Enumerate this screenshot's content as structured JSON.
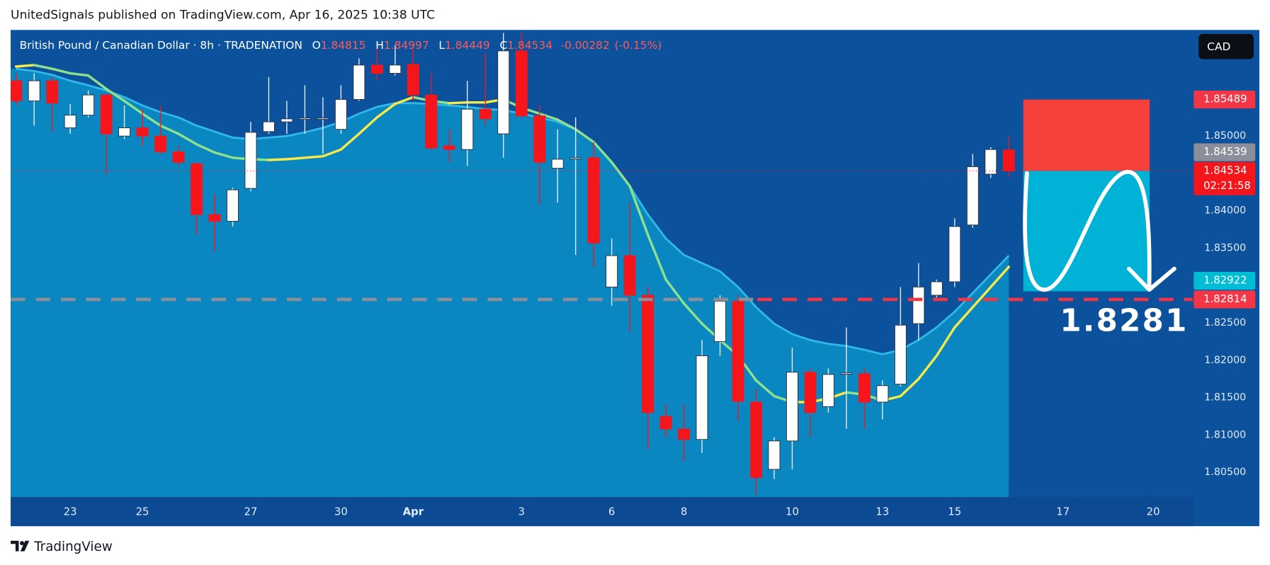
{
  "header": {
    "text": "UnitedSignals published on TradingView.com, Apr 16, 2025 10:38 UTC"
  },
  "footer": {
    "brand": "TradingView"
  },
  "chart_data": {
    "type": "candlestick",
    "symbol": "British Pound / Canadian Dollar · 8h · TRADENATION",
    "ohlc_legend": [
      {
        "key": "O",
        "value": 1.84815
      },
      {
        "key": "H",
        "value": 1.84997
      },
      {
        "key": "L",
        "value": 1.84449
      },
      {
        "key": "C",
        "value": 1.84534
      }
    ],
    "change": -0.00282,
    "change_pct": {
      "value": -0.15,
      "label": "(-0.15%)"
    },
    "currency": "CAD",
    "countdown": "02:21:58",
    "xlim": [
      -0.3,
      65.2
    ],
    "xticks": [
      {
        "value": 3,
        "label": "23"
      },
      {
        "value": 7,
        "label": "25"
      },
      {
        "value": 13,
        "label": "27"
      },
      {
        "value": 18,
        "label": "30"
      },
      {
        "value": 22,
        "label": "Apr"
      },
      {
        "value": 28,
        "label": "3"
      },
      {
        "value": 33,
        "label": "6"
      },
      {
        "value": 37,
        "label": "8"
      },
      {
        "value": 43,
        "label": "10"
      },
      {
        "value": 48,
        "label": "13"
      },
      {
        "value": 52,
        "label": "15"
      },
      {
        "value": 58,
        "label": "17"
      },
      {
        "value": 63,
        "label": "20"
      }
    ],
    "ylim": [
      1.8017,
      1.8642
    ],
    "yticks": [
      {
        "value": 1.805,
        "label": "1.80500"
      },
      {
        "value": 1.81,
        "label": "1.81000"
      },
      {
        "value": 1.815,
        "label": "1.81500"
      },
      {
        "value": 1.82,
        "label": "1.82000"
      },
      {
        "value": 1.825,
        "label": "1.82500"
      },
      {
        "value": 1.83,
        "label": "1.83000"
      },
      {
        "value": 1.835,
        "label": "1.83500"
      },
      {
        "value": 1.84,
        "label": "1.84000"
      },
      {
        "value": 1.85,
        "label": "1.85000"
      }
    ],
    "grid": false,
    "up_color": "#ffffff",
    "down_color": "#f5161c",
    "candles": {
      "open": [
        1.8574,
        1.8547,
        1.8574,
        1.8511,
        1.8528,
        1.8555,
        1.85,
        1.8511,
        1.85,
        1.8479,
        1.8463,
        1.8395,
        1.8386,
        1.843,
        1.8506,
        1.8519,
        1.8523,
        1.8523,
        1.8509,
        1.8549,
        1.8595,
        1.8584,
        1.8596,
        1.8555,
        1.8487,
        1.8482,
        1.8536,
        1.8503,
        1.8614,
        1.8527,
        1.8457,
        1.847,
        1.8471,
        1.8298,
        1.834,
        1.8287,
        1.8125,
        1.8108,
        1.8094,
        1.8225,
        1.8279,
        1.8144,
        1.8054,
        1.8092,
        1.8184,
        1.8138,
        1.8182,
        1.8182,
        1.8144,
        1.8168,
        1.8249,
        1.8287,
        1.8305,
        1.8381,
        1.8449,
        1.84815
      ],
      "high": [
        1.8584,
        1.8584,
        1.8579,
        1.8543,
        1.8561,
        1.8557,
        1.8541,
        1.8536,
        1.8541,
        1.8487,
        1.8465,
        1.8422,
        1.8431,
        1.8519,
        1.8579,
        1.8547,
        1.8568,
        1.8552,
        1.8568,
        1.8604,
        1.8622,
        1.8622,
        1.8617,
        1.8584,
        1.8509,
        1.8574,
        1.8611,
        1.8638,
        1.8638,
        1.8541,
        1.8509,
        1.8525,
        1.8492,
        1.8363,
        1.8411,
        1.8298,
        1.8141,
        1.8141,
        1.8227,
        1.8287,
        1.8287,
        1.8162,
        1.8097,
        1.8217,
        1.8189,
        1.8189,
        1.8244,
        1.8189,
        1.8173,
        1.8298,
        1.833,
        1.8308,
        1.839,
        1.8476,
        1.8485,
        1.84997
      ],
      "low": [
        1.8541,
        1.8514,
        1.8506,
        1.8503,
        1.8525,
        1.8449,
        1.8496,
        1.8487,
        1.8476,
        1.846,
        1.8368,
        1.8346,
        1.8379,
        1.8426,
        1.8503,
        1.8503,
        1.8503,
        1.8476,
        1.8503,
        1.8547,
        1.8574,
        1.8581,
        1.8547,
        1.8482,
        1.8465,
        1.846,
        1.8514,
        1.8471,
        1.8525,
        1.8408,
        1.8411,
        1.8341,
        1.8325,
        1.8273,
        1.8238,
        1.8081,
        1.8097,
        1.8065,
        1.8076,
        1.8206,
        1.8119,
        1.802,
        1.8041,
        1.8054,
        1.8097,
        1.813,
        1.8108,
        1.8108,
        1.8121,
        1.8165,
        1.8227,
        1.8284,
        1.8298,
        1.8377,
        1.8444,
        1.84449
      ],
      "close": [
        1.8547,
        1.8574,
        1.8544,
        1.8528,
        1.8555,
        1.8503,
        1.8511,
        1.85,
        1.8479,
        1.8465,
        1.8395,
        1.8386,
        1.8428,
        1.8505,
        1.8519,
        1.8523,
        1.8524,
        1.8524,
        1.8549,
        1.8595,
        1.8584,
        1.8595,
        1.8555,
        1.8484,
        1.8482,
        1.8536,
        1.8523,
        1.8614,
        1.8527,
        1.8465,
        1.8469,
        1.8471,
        1.8357,
        1.834,
        1.8287,
        1.813,
        1.8108,
        1.8094,
        1.8206,
        1.8279,
        1.8145,
        1.8043,
        1.8092,
        1.8184,
        1.813,
        1.8181,
        1.8183,
        1.8144,
        1.8166,
        1.8247,
        1.8298,
        1.8305,
        1.8379,
        1.8459,
        1.8482,
        1.84534
      ]
    },
    "fast_ma": {
      "up_color": "#f7ea48",
      "down_color": "#8fe08c",
      "values": [
        1.8593,
        1.8595,
        1.859,
        1.8584,
        1.8581,
        1.8563,
        1.8547,
        1.853,
        1.8514,
        1.8503,
        1.8489,
        1.8478,
        1.8471,
        1.8469,
        1.8468,
        1.8469,
        1.8471,
        1.8473,
        1.8482,
        1.8503,
        1.8525,
        1.8543,
        1.8552,
        1.8547,
        1.8544,
        1.8545,
        1.8545,
        1.8549,
        1.8538,
        1.853,
        1.8522,
        1.8509,
        1.8492,
        1.8465,
        1.8433,
        1.8368,
        1.8308,
        1.8276,
        1.8249,
        1.8227,
        1.8206,
        1.8173,
        1.8152,
        1.8144,
        1.8144,
        1.8149,
        1.8157,
        1.8154,
        1.8146,
        1.8152,
        1.8175,
        1.8206,
        1.8244,
        1.8271,
        1.8298,
        1.8325
      ]
    },
    "slow_ma": {
      "color": "#2fb8e8",
      "fill": "#0a86c0",
      "values": [
        1.859,
        1.8587,
        1.8582,
        1.8574,
        1.8568,
        1.8561,
        1.8552,
        1.8541,
        1.8532,
        1.8525,
        1.8514,
        1.8506,
        1.8498,
        1.8496,
        1.8498,
        1.85,
        1.8505,
        1.8511,
        1.8519,
        1.853,
        1.8539,
        1.8544,
        1.8544,
        1.8543,
        1.8541,
        1.8539,
        1.8536,
        1.8535,
        1.853,
        1.8525,
        1.8519,
        1.8509,
        1.8492,
        1.8465,
        1.8433,
        1.8395,
        1.8363,
        1.8341,
        1.833,
        1.8319,
        1.8298,
        1.8271,
        1.8249,
        1.8235,
        1.8227,
        1.8222,
        1.8219,
        1.8214,
        1.8208,
        1.8214,
        1.8227,
        1.8244,
        1.8265,
        1.829,
        1.8315,
        1.834
      ]
    },
    "position": {
      "stop": 1.85489,
      "entry": 1.84534,
      "target": 1.82922,
      "x_range": [
        55.8,
        62.8
      ],
      "stop_color": "#f5413a",
      "target_color": "#00b2d6"
    },
    "level": {
      "value": 1.82814,
      "label": "1.8281"
    },
    "price_labels": [
      {
        "value": 1.85489,
        "color": "#f23645"
      },
      {
        "value": 1.84539,
        "color": "#8a8f99"
      },
      {
        "value": 1.84534,
        "color": "#f5161c"
      },
      {
        "value": 1.82922,
        "color": "#00bcd4"
      },
      {
        "value": 1.82814,
        "color": "#f23645"
      }
    ]
  }
}
